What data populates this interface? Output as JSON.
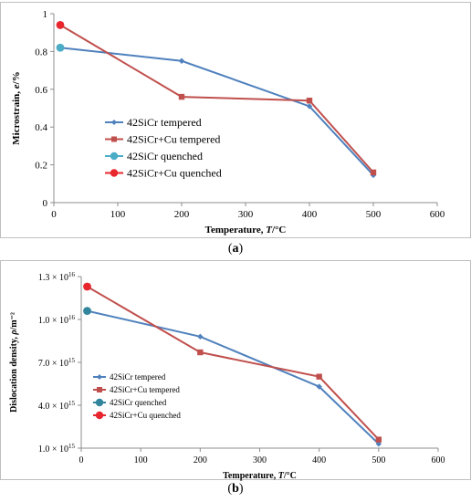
{
  "chart_data": [
    {
      "type": "line",
      "panel_label": "a",
      "xlabel": "Temperature,",
      "xlabel_var": "T",
      "xlabel_unit": "/°C",
      "ylabel": "Microstrain,",
      "ylabel_var": "e",
      "ylabel_unit": "/%",
      "xlim": [
        0,
        600
      ],
      "ylim": [
        0,
        1
      ],
      "x_ticks": [
        0,
        100,
        200,
        300,
        400,
        500,
        600
      ],
      "y_ticks": [
        0,
        0.2,
        0.4,
        0.6,
        0.8,
        1
      ],
      "y_tick_labels": [
        "0",
        "0.2",
        "0.4",
        "0.6",
        "0.8",
        "1"
      ],
      "grid": false,
      "legend": "center-left",
      "series": [
        {
          "name": "42SiCr tempered",
          "color": "#4f81bd",
          "marker": "diamond",
          "x": [
            10,
            200,
            400,
            500
          ],
          "y": [
            0.82,
            0.75,
            0.51,
            0.145
          ]
        },
        {
          "name": "42SiCr+Cu tempered",
          "color": "#c0504d",
          "marker": "square",
          "x": [
            10,
            200,
            400,
            500
          ],
          "y": [
            0.94,
            0.56,
            0.54,
            0.16
          ]
        },
        {
          "name": "42SiCr quenched",
          "color": "#4bacc6",
          "marker": "circle",
          "x": [
            10
          ],
          "y": [
            0.82
          ]
        },
        {
          "name": "42SiCr+Cu quenched",
          "color": "#e8262d",
          "marker": "circle",
          "x": [
            10
          ],
          "y": [
            0.94
          ]
        }
      ]
    },
    {
      "type": "line",
      "panel_label": "b",
      "xlabel": "Temperature,",
      "xlabel_var": "T",
      "xlabel_unit": "/°C",
      "ylabel": "Dislocation density,",
      "ylabel_var": "ρ",
      "ylabel_unit": "/m⁻²",
      "xlim": [
        0,
        600
      ],
      "ylim": [
        1000000000000000.0,
        1.3e+16
      ],
      "x_ticks": [
        0,
        100,
        200,
        300,
        400,
        500,
        600
      ],
      "y_ticks": [
        1000000000000000.0,
        4000000000000000.0,
        7000000000000000.0,
        1e+16,
        1.3e+16
      ],
      "y_tick_labels": [
        {
          "mant": "1.0",
          "exp": "15"
        },
        {
          "mant": "4.0",
          "exp": "15"
        },
        {
          "mant": "7.0",
          "exp": "15"
        },
        {
          "mant": "1.0",
          "exp": "16"
        },
        {
          "mant": "1.3",
          "exp": "16"
        }
      ],
      "grid": false,
      "legend": "bottom-left",
      "series": [
        {
          "name": "42SiCr tempered",
          "color": "#4f81bd",
          "marker": "diamond",
          "x": [
            10,
            200,
            400,
            500
          ],
          "y": [
            1.06e+16,
            8800000000000000.0,
            5300000000000000.0,
            1300000000000000.0
          ]
        },
        {
          "name": "42SiCr+Cu tempered",
          "color": "#c0504d",
          "marker": "square",
          "x": [
            10,
            200,
            400,
            500
          ],
          "y": [
            1.23e+16,
            7700000000000000.0,
            6000000000000000.0,
            1600000000000000.0
          ]
        },
        {
          "name": "42SiCr quenched",
          "color": "#31859c",
          "marker": "circle",
          "x": [
            10
          ],
          "y": [
            1.06e+16
          ]
        },
        {
          "name": "42SiCr+Cu quenched",
          "color": "#e8262d",
          "marker": "circle",
          "x": [
            10
          ],
          "y": [
            1.23e+16
          ]
        }
      ]
    }
  ]
}
